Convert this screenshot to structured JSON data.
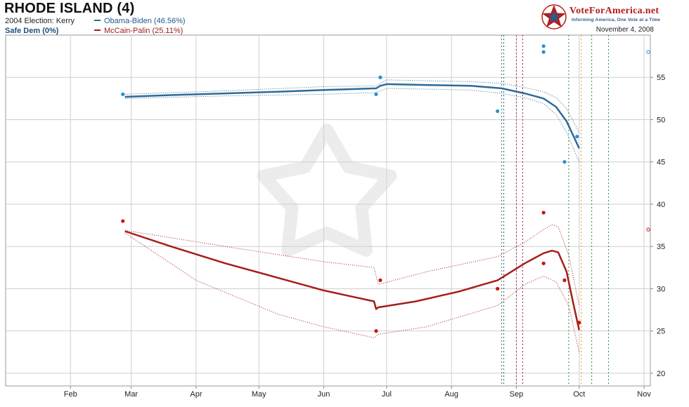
{
  "header": {
    "title": "RHODE ISLAND (4)",
    "election_2004": "2004 Election: Kerry",
    "status": "Safe Dem (0%)",
    "date": "November 4, 2008"
  },
  "brand": {
    "name": "VoteForAmerica.net",
    "tagline": "Informing America, One Vote at a Time",
    "colors": {
      "red": "#b41d1d",
      "blue": "#2a5c8c"
    }
  },
  "chart_data": {
    "type": "line",
    "title": "",
    "xlabel": "",
    "ylabel": "",
    "x_ticks": [
      "Feb",
      "Mar",
      "Apr",
      "May",
      "Jun",
      "Jul",
      "Aug",
      "Sep",
      "Oct",
      "Nov"
    ],
    "x_range": [
      "2008-01-01",
      "2008-11-04"
    ],
    "ylim": [
      18.5,
      60
    ],
    "y_ticks": [
      20,
      25,
      30,
      35,
      40,
      45,
      50,
      55
    ],
    "y_axis_side": "right",
    "grid": true,
    "legend_position": "top-left",
    "series": [
      {
        "name": "Obama-Biden (46.56%)",
        "color": "#2e6a98",
        "trend": [
          [
            "2008-02-27",
            52.7
          ],
          [
            "2008-03-20",
            52.9
          ],
          [
            "2008-04-15",
            53.1
          ],
          [
            "2008-05-10",
            53.3
          ],
          [
            "2008-06-01",
            53.5
          ],
          [
            "2008-06-26",
            53.7
          ],
          [
            "2008-06-28",
            54.0
          ],
          [
            "2008-07-01",
            54.2
          ],
          [
            "2008-07-20",
            54.1
          ],
          [
            "2008-08-10",
            54.0
          ],
          [
            "2008-08-25",
            53.7
          ],
          [
            "2008-09-05",
            53.1
          ],
          [
            "2008-09-14",
            52.5
          ],
          [
            "2008-09-20",
            51.5
          ],
          [
            "2008-09-25",
            49.8
          ],
          [
            "2008-10-01",
            46.6
          ]
        ],
        "upper": [
          [
            "2008-02-27",
            53.0
          ],
          [
            "2008-04-15",
            53.4
          ],
          [
            "2008-06-01",
            53.9
          ],
          [
            "2008-06-26",
            54.0
          ],
          [
            "2008-07-01",
            54.7
          ],
          [
            "2008-08-10",
            54.5
          ],
          [
            "2008-08-25",
            54.3
          ],
          [
            "2008-09-05",
            53.8
          ],
          [
            "2008-09-14",
            53.3
          ],
          [
            "2008-09-20",
            52.6
          ],
          [
            "2008-09-25",
            51.3
          ],
          [
            "2008-10-01",
            48.5
          ]
        ],
        "lower": [
          [
            "2008-02-27",
            52.5
          ],
          [
            "2008-04-15",
            52.8
          ],
          [
            "2008-06-01",
            53.0
          ],
          [
            "2008-06-26",
            53.2
          ],
          [
            "2008-07-01",
            53.7
          ],
          [
            "2008-08-10",
            53.5
          ],
          [
            "2008-08-25",
            53.1
          ],
          [
            "2008-09-05",
            52.6
          ],
          [
            "2008-09-14",
            51.9
          ],
          [
            "2008-09-20",
            50.6
          ],
          [
            "2008-09-25",
            48.5
          ],
          [
            "2008-10-01",
            45.0
          ]
        ],
        "polls": [
          [
            "2008-02-26",
            53
          ],
          [
            "2008-06-26",
            53
          ],
          [
            "2008-06-28",
            55
          ],
          [
            "2008-08-23",
            51
          ],
          [
            "2008-09-14",
            58
          ],
          [
            "2008-09-14",
            58.7
          ],
          [
            "2008-09-24",
            45
          ],
          [
            "2008-09-30",
            48
          ]
        ],
        "open_point": [
          "2008-11-03",
          58
        ]
      },
      {
        "name": "McCain-Palin (25.11%)",
        "color": "#a61d1d",
        "trend": [
          [
            "2008-02-27",
            36.8
          ],
          [
            "2008-03-20",
            35.0
          ],
          [
            "2008-04-15",
            33.0
          ],
          [
            "2008-05-10",
            31.3
          ],
          [
            "2008-06-01",
            29.8
          ],
          [
            "2008-06-25",
            28.5
          ],
          [
            "2008-06-26",
            27.6
          ],
          [
            "2008-06-27",
            27.8
          ],
          [
            "2008-07-15",
            28.5
          ],
          [
            "2008-08-05",
            29.7
          ],
          [
            "2008-08-23",
            31.0
          ],
          [
            "2008-09-05",
            33.0
          ],
          [
            "2008-09-14",
            34.2
          ],
          [
            "2008-09-18",
            34.5
          ],
          [
            "2008-09-21",
            34.3
          ],
          [
            "2008-09-25",
            32.0
          ],
          [
            "2008-09-28",
            28.5
          ],
          [
            "2008-10-01",
            25.1
          ]
        ],
        "upper": [
          [
            "2008-02-27",
            36.9
          ],
          [
            "2008-04-15",
            35.0
          ],
          [
            "2008-06-01",
            33.2
          ],
          [
            "2008-06-25",
            32.5
          ],
          [
            "2008-06-27",
            30.5
          ],
          [
            "2008-07-20",
            32.0
          ],
          [
            "2008-08-23",
            33.8
          ],
          [
            "2008-09-05",
            35.5
          ],
          [
            "2008-09-14",
            37.0
          ],
          [
            "2008-09-18",
            37.6
          ],
          [
            "2008-09-21",
            37.3
          ],
          [
            "2008-09-26",
            34.0
          ],
          [
            "2008-10-01",
            28.0
          ]
        ],
        "lower": [
          [
            "2008-02-27",
            36.6
          ],
          [
            "2008-04-01",
            31.0
          ],
          [
            "2008-05-10",
            27.0
          ],
          [
            "2008-06-01",
            25.5
          ],
          [
            "2008-06-25",
            24.2
          ],
          [
            "2008-06-27",
            24.6
          ],
          [
            "2008-07-20",
            25.5
          ],
          [
            "2008-08-23",
            28.0
          ],
          [
            "2008-09-05",
            30.5
          ],
          [
            "2008-09-14",
            31.5
          ],
          [
            "2008-09-20",
            30.8
          ],
          [
            "2008-09-26",
            28.0
          ],
          [
            "2008-10-01",
            22.5
          ]
        ],
        "polls": [
          [
            "2008-02-26",
            38
          ],
          [
            "2008-06-26",
            25
          ],
          [
            "2008-06-28",
            31
          ],
          [
            "2008-08-23",
            30
          ],
          [
            "2008-09-14",
            39
          ],
          [
            "2008-09-14",
            33
          ],
          [
            "2008-09-24",
            31
          ],
          [
            "2008-10-01",
            26
          ]
        ],
        "open_point": [
          "2008-11-03",
          37
        ]
      }
    ],
    "event_lines": [
      {
        "date": "2008-08-25",
        "color": "#2b7a4d"
      },
      {
        "date": "2008-08-26",
        "color": "#2a5c8c"
      },
      {
        "date": "2008-09-01",
        "color": "#b5205a"
      },
      {
        "date": "2008-09-04",
        "color": "#9b1b1b"
      },
      {
        "date": "2008-09-26",
        "color": "#2b8a3e"
      },
      {
        "date": "2008-10-02",
        "color": "#e59b16"
      },
      {
        "date": "2008-10-07",
        "color": "#2b8a3e"
      },
      {
        "date": "2008-10-15",
        "color": "#2b8a3e"
      }
    ]
  }
}
